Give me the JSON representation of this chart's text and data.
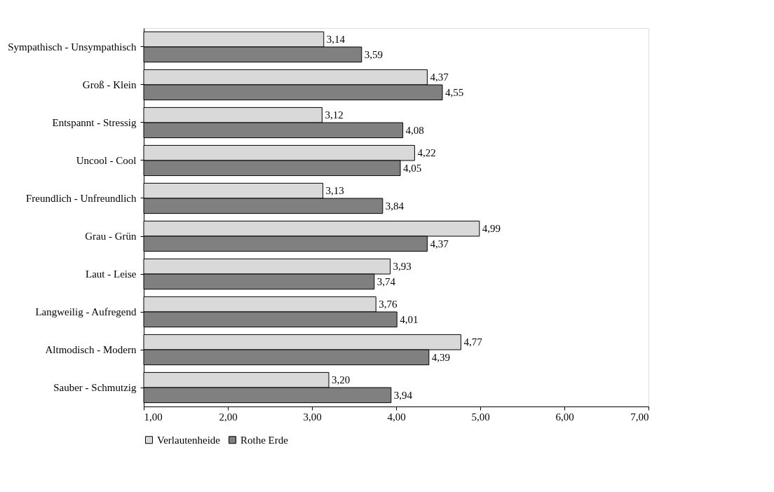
{
  "chart_data": {
    "type": "bar",
    "orientation": "horizontal",
    "categories": [
      "Sympathisch - Unsympathisch",
      "Groß - Klein",
      "Entspannt - Stressig",
      "Uncool - Cool",
      "Freundlich - Unfreundlich",
      "Grau - Grün",
      "Laut - Leise",
      "Langweilig - Aufregend",
      "Altmodisch - Modern",
      "Sauber - Schmutzig"
    ],
    "series": [
      {
        "name": "Verlautenheide",
        "color": "#d9d9d9",
        "values": [
          3.14,
          4.37,
          3.12,
          4.22,
          3.13,
          4.99,
          3.93,
          3.76,
          4.77,
          3.2
        ],
        "value_labels": [
          "3,14",
          "4,37",
          "3,12",
          "4,22",
          "3,13",
          "4,99",
          "3,93",
          "3,76",
          "4,77",
          "3,20"
        ]
      },
      {
        "name": "Rothe Erde",
        "color": "#808080",
        "values": [
          3.59,
          4.55,
          4.08,
          4.05,
          3.84,
          4.37,
          3.74,
          4.01,
          4.39,
          3.94
        ],
        "value_labels": [
          "3,59",
          "4,55",
          "4,08",
          "4,05",
          "3,84",
          "4,37",
          "3,74",
          "4,01",
          "4,39",
          "3,94"
        ]
      }
    ],
    "xlim": [
      1,
      7
    ],
    "xticks": [
      {
        "value": 1,
        "label": "1,00"
      },
      {
        "value": 2,
        "label": "2,00"
      },
      {
        "value": 3,
        "label": "3,00"
      },
      {
        "value": 4,
        "label": "4,00"
      },
      {
        "value": 5,
        "label": "5,00"
      },
      {
        "value": 6,
        "label": "6,00"
      },
      {
        "value": 7,
        "label": "7,00"
      }
    ],
    "grid": false,
    "legend": "bottom"
  }
}
